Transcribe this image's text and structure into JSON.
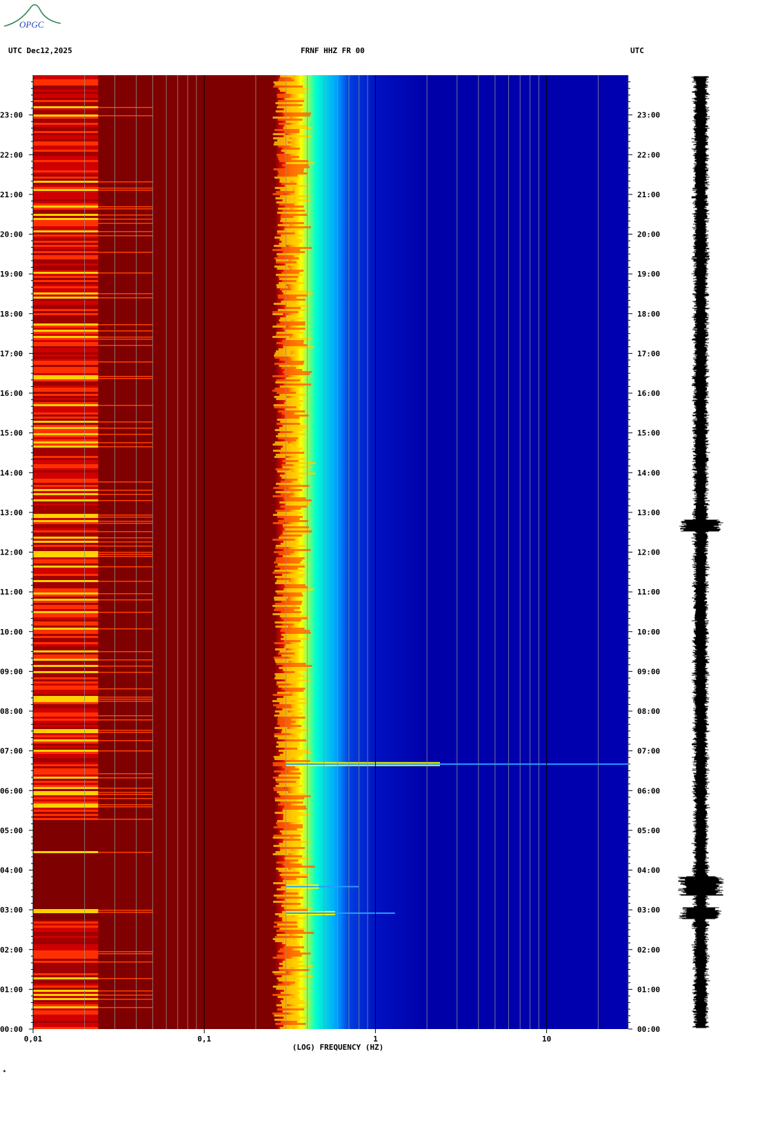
{
  "logo": {
    "text": "OPGC"
  },
  "header": {
    "left": "UTC  Dec12,2025",
    "center": "FRNF HHZ FR 00",
    "right": "UTC"
  },
  "colors": {
    "low": "#7f0000",
    "mid": "#ffff00",
    "cyan": "#00ffff",
    "high": "#0000a0",
    "background": "#ffffff"
  },
  "chart_data": {
    "type": "heatmap",
    "title": "FRNF HHZ FR 00",
    "xlabel": "(LOG) FREQUENCY (HZ)",
    "x_scale": "log",
    "xlim": [
      0.01,
      30
    ],
    "x_ticks": [
      {
        "value": 0.01,
        "label": "0,01"
      },
      {
        "value": 0.1,
        "label": "0,1"
      },
      {
        "value": 1,
        "label": "1"
      },
      {
        "value": 10,
        "label": "10"
      }
    ],
    "ylabel": "UTC",
    "ylim_hours": [
      0,
      24
    ],
    "y_ticks": [
      "00:00",
      "01:00",
      "02:00",
      "03:00",
      "04:00",
      "05:00",
      "06:00",
      "07:00",
      "08:00",
      "09:00",
      "10:00",
      "11:00",
      "12:00",
      "13:00",
      "14:00",
      "15:00",
      "16:00",
      "17:00",
      "18:00",
      "19:00",
      "20:00",
      "21:00",
      "22:00",
      "23:00"
    ],
    "spectral_transition_hz": 0.3,
    "events": [
      {
        "time": "02:55",
        "max_freq_hz": 1.3
      },
      {
        "time": "03:35",
        "max_freq_hz": 0.8
      },
      {
        "time": "06:40",
        "max_freq_hz": 30
      }
    ]
  },
  "seismogram": {
    "event_times": [
      "02:55",
      "03:40",
      "12:40"
    ]
  },
  "footer": {
    "mark": "*"
  }
}
